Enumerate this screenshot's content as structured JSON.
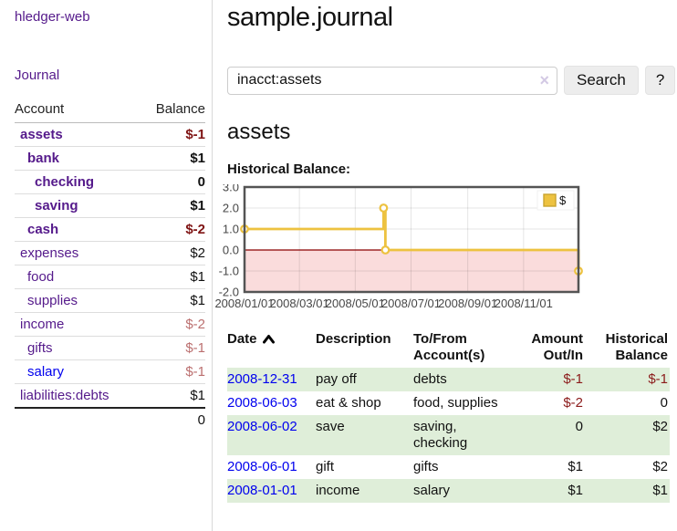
{
  "colors": {
    "link_visited_purple": "#551a8b",
    "link_unvisited_blue": "#0000ee",
    "negative_strong": "#7f1414",
    "negative_muted": "#bb6f6f",
    "table_negative": "#8b1a1a",
    "row_shaded_green": "#dfeed9",
    "divider_gray": "#d9d9d9",
    "chart_line_gold": "#edc240",
    "chart_negative_region_pink": "#fadcdc",
    "chart_zero_line_dark_red": "#8b0000",
    "chart_border_gray": "#545454"
  },
  "sidebar": {
    "app_title": "hledger-web",
    "journal_link": "Journal",
    "table": {
      "account_header": "Account",
      "balance_header": "Balance",
      "rows": [
        {
          "account": "assets",
          "indent": 1,
          "emphasis": true,
          "balance": "$-1",
          "balance_tone": "negative"
        },
        {
          "account": "bank",
          "indent": 2,
          "emphasis": true,
          "balance": "$1",
          "balance_tone": "normal"
        },
        {
          "account": "checking",
          "indent": 3,
          "emphasis": true,
          "balance": "0",
          "balance_tone": "normal"
        },
        {
          "account": "saving",
          "indent": 3,
          "emphasis": true,
          "balance": "$1",
          "balance_tone": "normal"
        },
        {
          "account": "cash",
          "indent": 2,
          "emphasis": true,
          "balance": "$-2",
          "balance_tone": "negative"
        },
        {
          "account": "expenses",
          "indent": 1,
          "emphasis": false,
          "balance": "$2",
          "balance_tone": "normal"
        },
        {
          "account": "food",
          "indent": 2,
          "emphasis": false,
          "balance": "$1",
          "balance_tone": "normal"
        },
        {
          "account": "supplies",
          "indent": 2,
          "emphasis": false,
          "balance": "$1",
          "balance_tone": "normal"
        },
        {
          "account": "income",
          "indent": 1,
          "emphasis": false,
          "balance": "$-2",
          "balance_tone": "negative-muted"
        },
        {
          "account": "gifts",
          "indent": 2,
          "emphasis": false,
          "balance": "$-1",
          "balance_tone": "negative-muted"
        },
        {
          "account": "salary",
          "indent": 2,
          "emphasis": false,
          "link_tone": "unvisited",
          "balance": "$-1",
          "balance_tone": "negative-muted"
        },
        {
          "account": "liabilities:debts",
          "indent": 1,
          "emphasis": false,
          "balance": "$1",
          "balance_tone": "normal"
        }
      ],
      "total": "0"
    }
  },
  "main": {
    "title": "sample.journal",
    "search": {
      "value": "inacct:assets",
      "clear_icon": "×",
      "button_label": "Search",
      "help_label": "?"
    },
    "account_heading": "assets",
    "chart_label": "Historical Balance:",
    "register": {
      "headers": {
        "date": "Date",
        "description": "Description",
        "accounts": "To/From Account(s)",
        "amount": "Amount Out/In",
        "balance": "Historical Balance"
      },
      "rows": [
        {
          "date": "2008-12-31",
          "description": "pay off",
          "accounts": "debts",
          "amount": "$-1",
          "amount_tone": "negative",
          "balance": "$-1",
          "balance_tone": "negative",
          "shaded": true
        },
        {
          "date": "2008-06-03",
          "description": "eat & shop",
          "accounts": "food, supplies",
          "amount": "$-2",
          "amount_tone": "negative",
          "balance": "0",
          "balance_tone": "normal",
          "shaded": false
        },
        {
          "date": "2008-06-02",
          "description": "save",
          "accounts": "saving, checking",
          "amount": "0",
          "amount_tone": "normal",
          "balance": "$2",
          "balance_tone": "normal",
          "shaded": true
        },
        {
          "date": "2008-06-01",
          "description": "gift",
          "accounts": "gifts",
          "amount": "$1",
          "amount_tone": "normal",
          "balance": "$2",
          "balance_tone": "normal",
          "shaded": false
        },
        {
          "date": "2008-01-01",
          "description": "income",
          "accounts": "salary",
          "amount": "$1",
          "amount_tone": "normal",
          "balance": "$1",
          "balance_tone": "normal",
          "shaded": true
        }
      ]
    }
  },
  "chart_data": {
    "type": "line",
    "step": true,
    "title": "Historical Balance",
    "xlabel": "",
    "ylabel": "",
    "xlim": [
      "2008-01-01",
      "2008-12-31"
    ],
    "ylim": [
      -2.0,
      3.0
    ],
    "yticks": [
      3.0,
      2.0,
      1.0,
      0.0,
      -1.0,
      -2.0
    ],
    "xticks": [
      {
        "date": "2008-01-01",
        "label": "2008/01/01"
      },
      {
        "date": "2008-03-01",
        "label": "2008/03/01"
      },
      {
        "date": "2008-05-01",
        "label": "2008/05/01"
      },
      {
        "date": "2008-07-01",
        "label": "2008/07/01"
      },
      {
        "date": "2008-09-01",
        "label": "2008/09/01"
      },
      {
        "date": "2008-11-01",
        "label": "2008/11/01"
      }
    ],
    "series": [
      {
        "name": "$",
        "color": "#edc240",
        "points": [
          [
            "2008-01-01",
            1
          ],
          [
            "2008-06-01",
            2
          ],
          [
            "2008-06-03",
            0
          ],
          [
            "2008-12-31",
            -1
          ]
        ]
      }
    ],
    "legend_position": "top-right",
    "grid": true,
    "negative_region_color": "#fadcdc",
    "zero_line_color": "#8b0000"
  }
}
